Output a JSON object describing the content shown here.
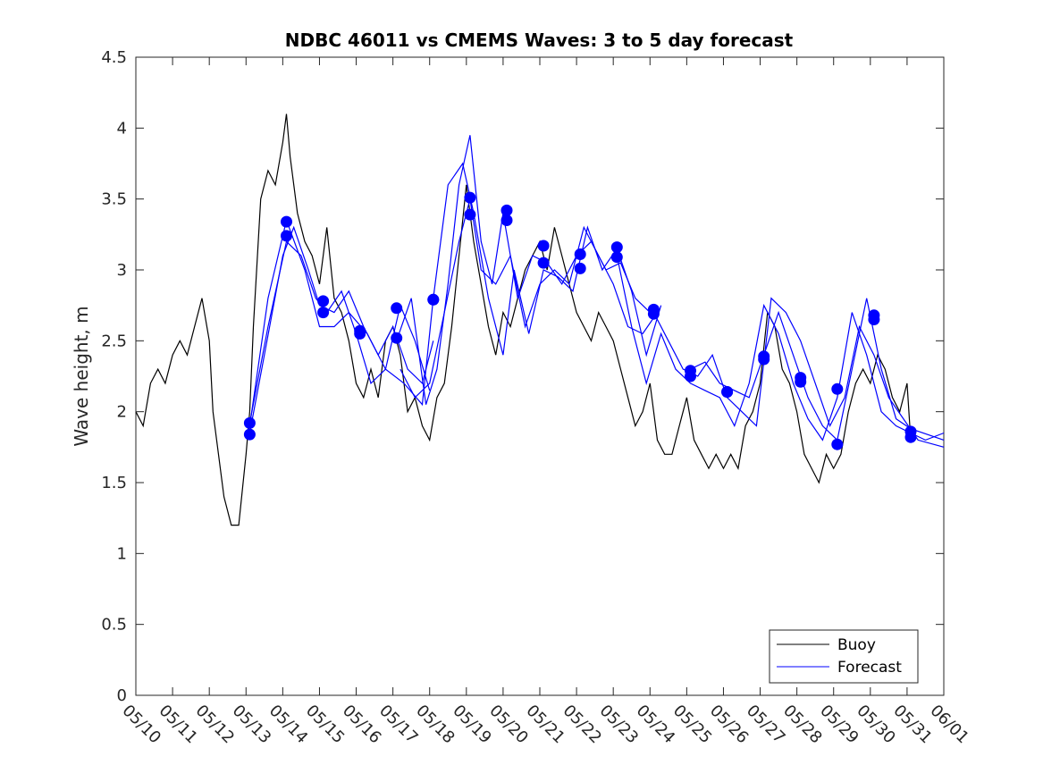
{
  "chart_data": {
    "type": "line",
    "title": "NDBC 46011 vs CMEMS Waves: 3 to 5 day forecast",
    "xlabel": "",
    "ylabel": "Wave height, m",
    "ylim": [
      0,
      4.5
    ],
    "yticks": [
      "0",
      "0.5",
      "1",
      "1.5",
      "2",
      "2.5",
      "3",
      "3.5",
      "4",
      "4.5"
    ],
    "xlim": [
      "05/10",
      "06/01"
    ],
    "xticks": [
      "05/10",
      "05/11",
      "05/12",
      "05/13",
      "05/14",
      "05/15",
      "05/16",
      "05/17",
      "05/18",
      "05/19",
      "05/20",
      "05/21",
      "05/22",
      "05/23",
      "05/24",
      "05/25",
      "05/26",
      "05/27",
      "05/28",
      "05/29",
      "05/30",
      "05/31",
      "06/01"
    ],
    "legend": {
      "placement": "bottom-right",
      "entries": [
        "Buoy",
        "Forecast"
      ]
    },
    "colors": {
      "buoy": "#000000",
      "forecast": "#0000ff",
      "marker": "#0000ff"
    },
    "grid": false,
    "series": [
      {
        "name": "Buoy",
        "day": [
          0.0,
          0.2,
          0.4,
          0.6,
          0.8,
          1.0,
          1.2,
          1.4,
          1.6,
          1.8,
          2.0,
          2.1,
          2.2,
          2.4,
          2.6,
          2.8,
          3.0,
          3.1,
          3.2,
          3.4,
          3.6,
          3.8,
          4.0,
          4.1,
          4.2,
          4.4,
          4.6,
          4.8,
          5.0,
          5.2,
          5.4,
          5.6,
          5.8,
          6.0,
          6.2,
          6.4,
          6.6,
          6.8,
          7.0,
          7.2,
          7.4,
          7.6,
          7.8,
          8.0,
          8.2,
          8.4,
          8.6,
          8.8,
          9.0,
          9.2,
          9.4,
          9.6,
          9.8,
          10.0,
          10.2,
          10.4,
          10.6,
          10.8,
          11.0,
          11.2,
          11.4,
          11.6,
          11.8,
          12.0,
          12.2,
          12.4,
          12.6,
          12.8,
          13.0,
          13.2,
          13.4,
          13.6,
          13.8,
          14.0,
          14.2,
          14.4,
          14.6,
          14.8,
          15.0,
          15.2,
          15.4,
          15.6,
          15.8,
          16.0,
          16.2,
          16.4,
          16.6,
          16.8,
          17.0,
          17.2,
          17.4,
          17.6,
          17.8,
          18.0,
          18.2,
          18.4,
          18.6,
          18.8,
          19.0,
          19.2,
          19.4,
          19.6,
          19.8,
          20.0,
          20.2,
          20.4,
          20.6,
          20.8,
          21.0,
          21.1
        ],
        "values": [
          2.0,
          1.9,
          2.2,
          2.3,
          2.2,
          2.4,
          2.5,
          2.4,
          2.6,
          2.8,
          2.5,
          2.0,
          1.8,
          1.4,
          1.2,
          1.2,
          1.7,
          2.0,
          2.6,
          3.5,
          3.7,
          3.6,
          3.9,
          4.1,
          3.8,
          3.4,
          3.2,
          3.1,
          2.9,
          3.3,
          2.8,
          2.7,
          2.5,
          2.2,
          2.1,
          2.3,
          2.1,
          2.5,
          2.6,
          2.4,
          2.0,
          2.1,
          1.9,
          1.8,
          2.1,
          2.2,
          2.6,
          3.1,
          3.6,
          3.2,
          2.9,
          2.6,
          2.4,
          2.7,
          2.6,
          2.8,
          3.0,
          3.1,
          3.2,
          3.0,
          3.3,
          3.1,
          2.9,
          2.7,
          2.6,
          2.5,
          2.7,
          2.6,
          2.5,
          2.3,
          2.1,
          1.9,
          2.0,
          2.2,
          1.8,
          1.7,
          1.7,
          1.9,
          2.1,
          1.8,
          1.7,
          1.6,
          1.7,
          1.6,
          1.7,
          1.6,
          1.9,
          2.0,
          2.2,
          2.7,
          2.6,
          2.3,
          2.2,
          2.0,
          1.7,
          1.6,
          1.5,
          1.7,
          1.6,
          1.7,
          2.0,
          2.2,
          2.3,
          2.2,
          2.4,
          2.3,
          2.1,
          2.0,
          2.2,
          1.8
        ]
      },
      {
        "name": "Forecast",
        "lines": [
          {
            "day": [
              3.1,
              3.5,
              4.0,
              4.3,
              4.7,
              5.0,
              5.4,
              5.8,
              6.2,
              6.6,
              7.0,
              7.4,
              7.8,
              8.1
            ],
            "values": [
              1.85,
              2.4,
              3.1,
              3.3,
              3.0,
              2.75,
              2.7,
              2.85,
              2.6,
              2.4,
              2.6,
              2.3,
              2.2,
              2.5
            ]
          },
          {
            "day": [
              3.1,
              3.6,
              4.1,
              4.5,
              4.9,
              5.2,
              5.6,
              6.0,
              6.4,
              6.8,
              7.2,
              7.6,
              8.0
            ],
            "values": [
              1.92,
              2.6,
              3.2,
              3.1,
              2.8,
              2.7,
              2.85,
              2.55,
              2.2,
              2.3,
              2.75,
              2.5,
              2.15
            ]
          },
          {
            "day": [
              3.1,
              3.6,
              4.1,
              4.6,
              5.0,
              5.4,
              5.8,
              6.3,
              6.8,
              7.3,
              7.8,
              8.1
            ],
            "values": [
              1.9,
              2.8,
              3.35,
              3.0,
              2.6,
              2.6,
              2.7,
              2.55,
              2.3,
              2.2,
              2.05,
              2.8
            ]
          },
          {
            "day": [
              7.1,
              7.5,
              7.9,
              8.2,
              8.5,
              8.8,
              9.1,
              9.4,
              9.7,
              10.0,
              10.4,
              10.8,
              11.2,
              11.6,
              12.0,
              12.4,
              12.8,
              13.2,
              13.6,
              14.0
            ],
            "values": [
              2.5,
              2.8,
              2.05,
              2.3,
              2.9,
              3.6,
              3.95,
              3.2,
              2.9,
              3.4,
              2.8,
              3.1,
              3.05,
              2.9,
              3.1,
              3.2,
              3.0,
              3.05,
              2.8,
              2.7
            ]
          },
          {
            "day": [
              7.2,
              7.6,
              8.0,
              8.4,
              8.8,
              9.1,
              9.4,
              9.8,
              10.2,
              10.6,
              11.0,
              11.4,
              11.8,
              12.2,
              12.6,
              13.0,
              13.4,
              13.8,
              14.2
            ],
            "values": [
              2.3,
              2.1,
              2.2,
              2.7,
              3.2,
              3.5,
              3.0,
              2.9,
              3.1,
              2.6,
              2.9,
              3.0,
              2.9,
              3.3,
              3.1,
              2.9,
              2.6,
              2.55,
              2.7
            ]
          },
          {
            "day": [
              8.1,
              8.5,
              8.9,
              9.2,
              9.6,
              10.0,
              10.3,
              10.7,
              11.1,
              11.5,
              11.9,
              12.3,
              12.7,
              13.1,
              13.5,
              13.9,
              14.3
            ],
            "values": [
              2.8,
              3.6,
              3.75,
              3.4,
              2.8,
              2.4,
              3.0,
              2.55,
              3.0,
              2.95,
              2.85,
              3.3,
              3.0,
              3.15,
              2.85,
              2.4,
              2.75
            ]
          },
          {
            "day": [
              13.1,
              13.5,
              13.9,
              14.3,
              14.7,
              15.1,
              15.5,
              15.9,
              16.3,
              16.7,
              17.1,
              17.5,
              17.9,
              18.3,
              18.7,
              19.1,
              19.5,
              19.9,
              20.3,
              20.7,
              21.1,
              21.5,
              22.0
            ],
            "values": [
              3.1,
              2.6,
              2.2,
              2.55,
              2.3,
              2.2,
              2.15,
              2.1,
              1.9,
              2.2,
              2.75,
              2.55,
              2.2,
              1.95,
              1.8,
              2.1,
              2.7,
              2.4,
              2.0,
              1.9,
              1.85,
              1.8,
              1.85
            ]
          },
          {
            "day": [
              14.1,
              14.5,
              14.9,
              15.3,
              15.7,
              16.1,
              16.5,
              16.9,
              17.3,
              17.7,
              18.1,
              18.5,
              18.9,
              19.3,
              19.7,
              20.1,
              20.5,
              20.9,
              21.3,
              22.0
            ],
            "values": [
              2.7,
              2.5,
              2.3,
              2.25,
              2.4,
              2.1,
              2.0,
              1.9,
              2.8,
              2.7,
              2.5,
              2.2,
              1.9,
              2.1,
              2.6,
              2.4,
              2.1,
              1.95,
              1.8,
              1.75
            ]
          },
          {
            "day": [
              15.1,
              15.5,
              15.9,
              16.3,
              16.7,
              17.1,
              17.5,
              17.9,
              18.3,
              18.7,
              19.1,
              19.5,
              19.9,
              20.3,
              20.7,
              21.1,
              22.0
            ],
            "values": [
              2.3,
              2.35,
              2.2,
              2.15,
              2.1,
              2.4,
              2.7,
              2.4,
              2.1,
              1.9,
              1.8,
              2.3,
              2.8,
              2.3,
              1.95,
              1.88,
              1.8
            ]
          }
        ]
      },
      {
        "name": "",
        "markers_day": [
          3.1,
          3.1,
          4.1,
          4.1,
          5.1,
          5.1,
          6.1,
          6.1,
          7.1,
          7.1,
          8.1,
          8.1,
          9.1,
          9.1,
          10.1,
          10.1,
          11.1,
          11.1,
          12.1,
          12.1,
          13.1,
          13.1,
          14.1,
          14.1,
          15.1,
          15.1,
          16.1,
          16.1,
          17.1,
          17.1,
          18.1,
          18.1,
          19.1,
          19.1,
          20.1,
          20.1,
          21.1,
          21.1
        ],
        "markers": [
          1.92,
          1.84,
          3.34,
          3.24,
          2.78,
          2.7,
          2.57,
          2.55,
          2.73,
          2.52,
          2.79,
          2.79,
          3.51,
          3.39,
          3.42,
          3.35,
          3.17,
          3.05,
          3.11,
          3.01,
          3.16,
          3.09,
          2.72,
          2.69,
          2.29,
          2.25,
          2.14,
          2.14,
          2.39,
          2.37,
          2.24,
          2.21,
          2.16,
          1.77,
          2.68,
          2.65,
          1.86,
          1.82
        ]
      }
    ]
  }
}
